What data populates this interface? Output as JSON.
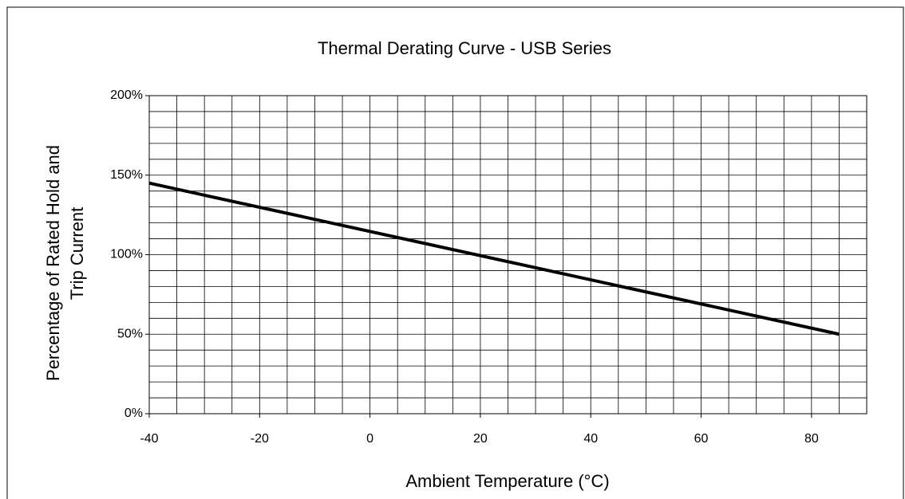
{
  "chart_data": {
    "type": "line",
    "title": "Thermal Derating Curve - USB Series",
    "xlabel": "Ambient Temperature (°C)",
    "ylabel": [
      "Percentage of Rated Hold  and",
      "Trip Current"
    ],
    "x": [
      -40,
      85
    ],
    "series": [
      {
        "name": "USB Series",
        "color": "#000000",
        "values": [
          145,
          50
        ]
      }
    ],
    "xlim": [
      -40,
      90
    ],
    "xticks": [
      -40,
      -20,
      0,
      20,
      40,
      60,
      80
    ],
    "ylim": [
      0,
      200
    ],
    "yticks": [
      {
        "value": 0,
        "label": "0%"
      },
      {
        "value": 50,
        "label": "50%"
      },
      {
        "value": 100,
        "label": "100%"
      },
      {
        "value": 150,
        "label": "150%"
      },
      {
        "value": 200,
        "label": "200%"
      }
    ],
    "xgrid": [
      -40,
      -35,
      -30,
      -25,
      -20,
      -15,
      -10,
      -5,
      0,
      5,
      10,
      15,
      20,
      25,
      30,
      35,
      40,
      45,
      50,
      55,
      60,
      65,
      70,
      75,
      80,
      85,
      90
    ],
    "ygrid": [
      0,
      10,
      20,
      30,
      40,
      50,
      60,
      70,
      80,
      90,
      100,
      110,
      120,
      130,
      140,
      150,
      160,
      170,
      180,
      190,
      200
    ],
    "grid": true
  }
}
